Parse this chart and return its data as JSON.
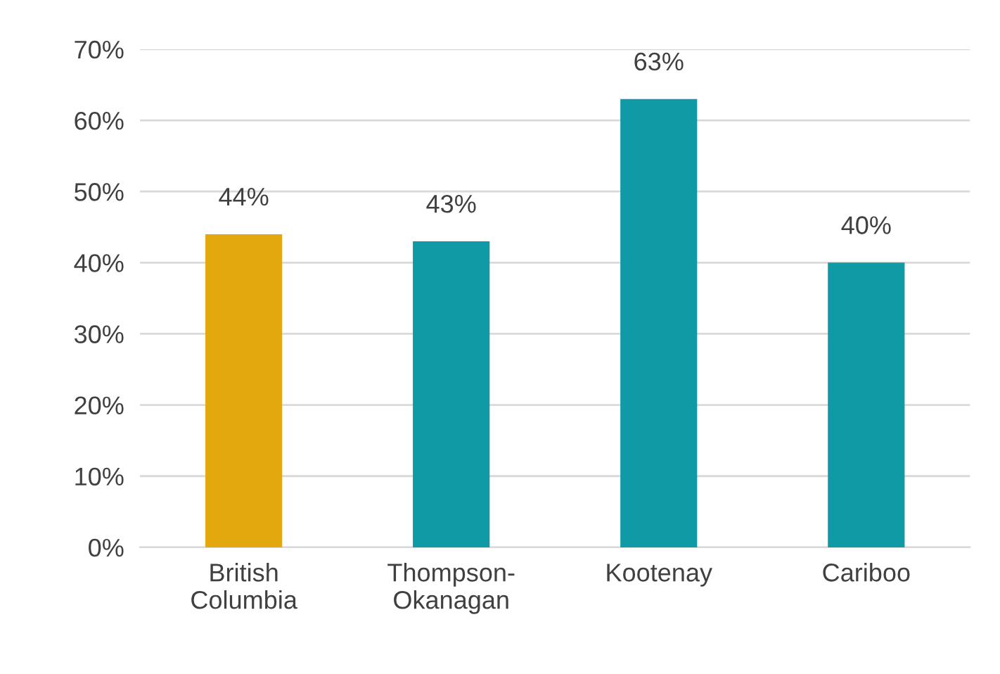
{
  "chart_data": {
    "type": "bar",
    "categories": [
      "British\nColumbia",
      "Thompson-\nOkanagan",
      "Kootenay",
      "Cariboo"
    ],
    "values": [
      44,
      43,
      63,
      40
    ],
    "colors": [
      "#e2a80e",
      "#0f9aa6",
      "#0f9aa6",
      "#0f9aa6"
    ],
    "ylim": [
      0,
      70
    ],
    "yticks": [
      {
        "value": 0,
        "label": "0%"
      },
      {
        "value": 10,
        "label": "10%"
      },
      {
        "value": 20,
        "label": "20%"
      },
      {
        "value": 30,
        "label": "30%"
      },
      {
        "value": 40,
        "label": "40%"
      },
      {
        "value": 50,
        "label": "50%"
      },
      {
        "value": 60,
        "label": "60%"
      },
      {
        "value": 70,
        "label": "70%"
      }
    ],
    "value_labels": [
      "44%",
      "43%",
      "63%",
      "40%"
    ],
    "grid": "y"
  }
}
